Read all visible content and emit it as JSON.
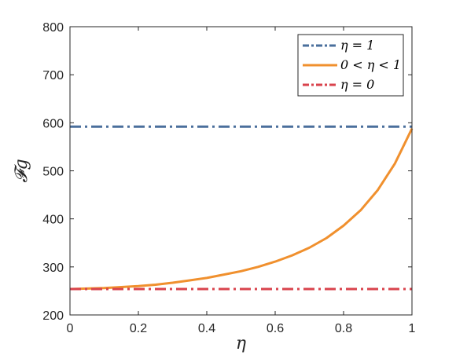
{
  "chart_data": {
    "type": "line",
    "title": "",
    "xlabel": "η",
    "ylabel": "𝓕g",
    "xlim": [
      0,
      1
    ],
    "ylim": [
      200,
      800
    ],
    "xticks": [
      0,
      0.2,
      0.4,
      0.6,
      0.8,
      1
    ],
    "xtick_labels": [
      "0",
      "0.2",
      "0.4",
      "0.6",
      "0.8",
      "1"
    ],
    "yticks": [
      200,
      300,
      400,
      500,
      600,
      700,
      800
    ],
    "ytick_labels": [
      "200",
      "300",
      "400",
      "500",
      "600",
      "700",
      "800"
    ],
    "grid": false,
    "legend_position": "top-right",
    "series": [
      {
        "name": "η = 1",
        "color": "#4a6f9c",
        "style": "dash-dot",
        "x": [
          0,
          1
        ],
        "y": [
          592,
          592
        ]
      },
      {
        "name": "0 < η < 1",
        "color": "#f0902e",
        "style": "solid",
        "x": [
          0,
          0.05,
          0.1,
          0.15,
          0.2,
          0.25,
          0.3,
          0.35,
          0.4,
          0.45,
          0.5,
          0.55,
          0.6,
          0.65,
          0.7,
          0.75,
          0.8,
          0.85,
          0.9,
          0.95,
          1
        ],
        "y": [
          254,
          255,
          256,
          258,
          260,
          263,
          267,
          272,
          277,
          284,
          291,
          300,
          311,
          324,
          340,
          360,
          386,
          418,
          460,
          515,
          588
        ]
      },
      {
        "name": "η = 0",
        "color": "#d9434d",
        "style": "dash-dot",
        "x": [
          0,
          1
        ],
        "y": [
          254,
          254
        ]
      }
    ]
  }
}
